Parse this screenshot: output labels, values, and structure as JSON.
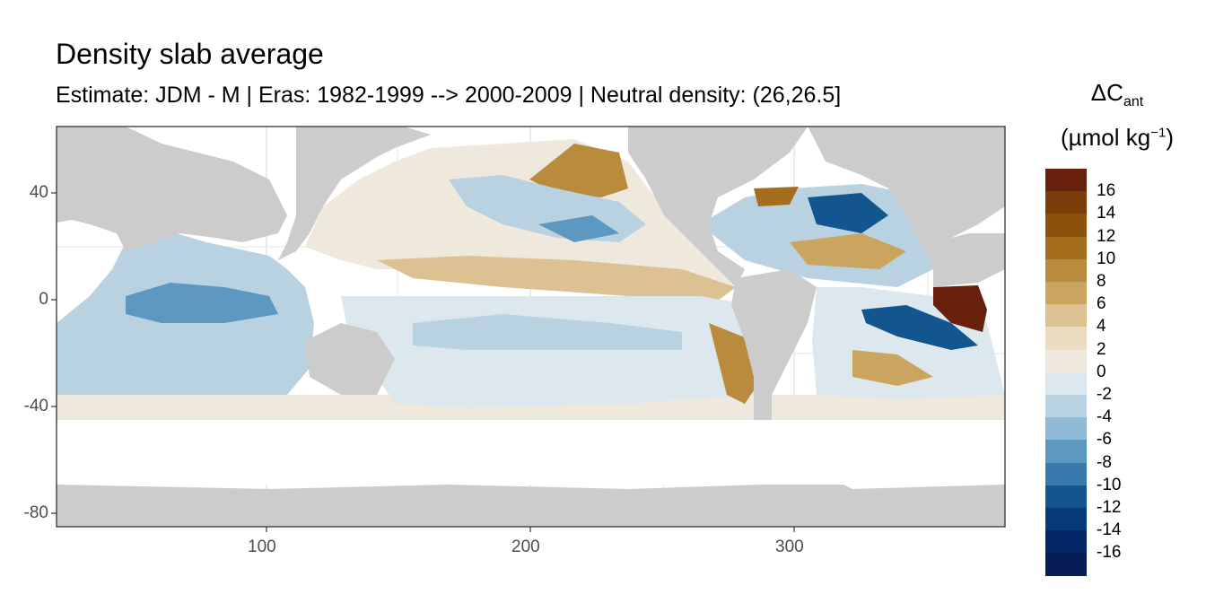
{
  "title": "Density slab average",
  "subtitle": "Estimate: JDM - M | Eras: 1982-1999 --> 2000-2009 | Neutral density: (26,26.5]",
  "axes": {
    "x_ticks": [
      "100",
      "200",
      "300"
    ],
    "y_ticks": [
      "40",
      "0",
      "-40",
      "-80"
    ]
  },
  "legend": {
    "title_line1": "ΔCant",
    "title_symbol": "ΔC",
    "title_sub": "ant",
    "title_line2_open": "(µmol kg",
    "title_line2_sup": "−1",
    "title_line2_close": ")",
    "labels": [
      "16",
      "14",
      "12",
      "10",
      "8",
      "6",
      "4",
      "2",
      "0",
      "-2",
      "-4",
      "-6",
      "-8",
      "-10",
      "-12",
      "-14",
      "-16"
    ],
    "colors": [
      "#67200a",
      "#7a3c08",
      "#8c510a",
      "#a56e1e",
      "#b98b3c",
      "#c9a560",
      "#dcc292",
      "#ebdcc0",
      "#efe8dc",
      "#dde8ee",
      "#b8d2e2",
      "#8fb9d5",
      "#5d98c1",
      "#3679aa",
      "#13568f",
      "#063a79",
      "#032766",
      "#081d58"
    ]
  },
  "colors": {
    "land": "#cccccc",
    "ocean_nodata": "#ffffff",
    "grid": "#ebebeb",
    "frame": "#333333"
  }
}
